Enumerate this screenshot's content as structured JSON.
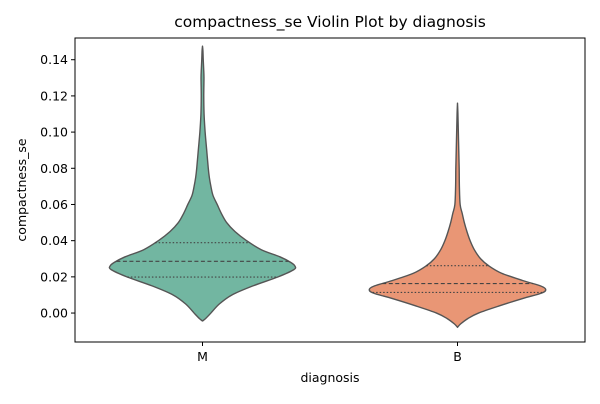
{
  "chart_data": {
    "type": "violin",
    "title": "compactness_se Violin Plot by diagnosis",
    "xlabel": "diagnosis",
    "ylabel": "compactness_se",
    "categories": [
      "M",
      "B"
    ],
    "ylim": [
      -0.016,
      0.152
    ],
    "yticks": [
      {
        "value": 0.0,
        "label": "0.00"
      },
      {
        "value": 0.02,
        "label": "0.02"
      },
      {
        "value": 0.04,
        "label": "0.04"
      },
      {
        "value": 0.06,
        "label": "0.06"
      },
      {
        "value": 0.08,
        "label": "0.08"
      },
      {
        "value": 0.1,
        "label": "0.10"
      },
      {
        "value": 0.12,
        "label": "0.12"
      },
      {
        "value": 0.14,
        "label": "0.14"
      }
    ],
    "grid": false,
    "inner": "quartile",
    "series": [
      {
        "category": "M",
        "color": "#72b6a1",
        "q1": 0.0199,
        "median": 0.0286,
        "q3": 0.0389,
        "profile": [
          [
            -0.0044,
            0.0
          ],
          [
            -0.003,
            0.03
          ],
          [
            0.0,
            0.08
          ],
          [
            0.005,
            0.16
          ],
          [
            0.01,
            0.28
          ],
          [
            0.015,
            0.48
          ],
          [
            0.02,
            0.72
          ],
          [
            0.024,
            0.87
          ],
          [
            0.026,
            0.88
          ],
          [
            0.028,
            0.84
          ],
          [
            0.031,
            0.74
          ],
          [
            0.035,
            0.56
          ],
          [
            0.04,
            0.42
          ],
          [
            0.045,
            0.31
          ],
          [
            0.05,
            0.23
          ],
          [
            0.055,
            0.18
          ],
          [
            0.06,
            0.14
          ],
          [
            0.065,
            0.1
          ],
          [
            0.07,
            0.08
          ],
          [
            0.075,
            0.065
          ],
          [
            0.08,
            0.055
          ],
          [
            0.09,
            0.04
          ],
          [
            0.1,
            0.025
          ],
          [
            0.11,
            0.015
          ],
          [
            0.12,
            0.012
          ],
          [
            0.13,
            0.014
          ],
          [
            0.135,
            0.011
          ],
          [
            0.14,
            0.007
          ],
          [
            0.145,
            0.004
          ],
          [
            0.1475,
            0.0
          ]
        ]
      },
      {
        "category": "B",
        "color": "#e99675",
        "q1": 0.0114,
        "median": 0.0163,
        "q3": 0.0262,
        "profile": [
          [
            -0.0079,
            0.0
          ],
          [
            -0.006,
            0.03
          ],
          [
            -0.003,
            0.1
          ],
          [
            0.0,
            0.2
          ],
          [
            0.004,
            0.4
          ],
          [
            0.008,
            0.62
          ],
          [
            0.011,
            0.8
          ],
          [
            0.013,
            0.84
          ],
          [
            0.015,
            0.79
          ],
          [
            0.018,
            0.62
          ],
          [
            0.022,
            0.42
          ],
          [
            0.026,
            0.3
          ],
          [
            0.03,
            0.22
          ],
          [
            0.035,
            0.16
          ],
          [
            0.04,
            0.12
          ],
          [
            0.045,
            0.09
          ],
          [
            0.05,
            0.065
          ],
          [
            0.055,
            0.045
          ],
          [
            0.06,
            0.025
          ],
          [
            0.07,
            0.018
          ],
          [
            0.08,
            0.016
          ],
          [
            0.09,
            0.012
          ],
          [
            0.1,
            0.008
          ],
          [
            0.11,
            0.004
          ],
          [
            0.116,
            0.0
          ]
        ]
      }
    ]
  }
}
